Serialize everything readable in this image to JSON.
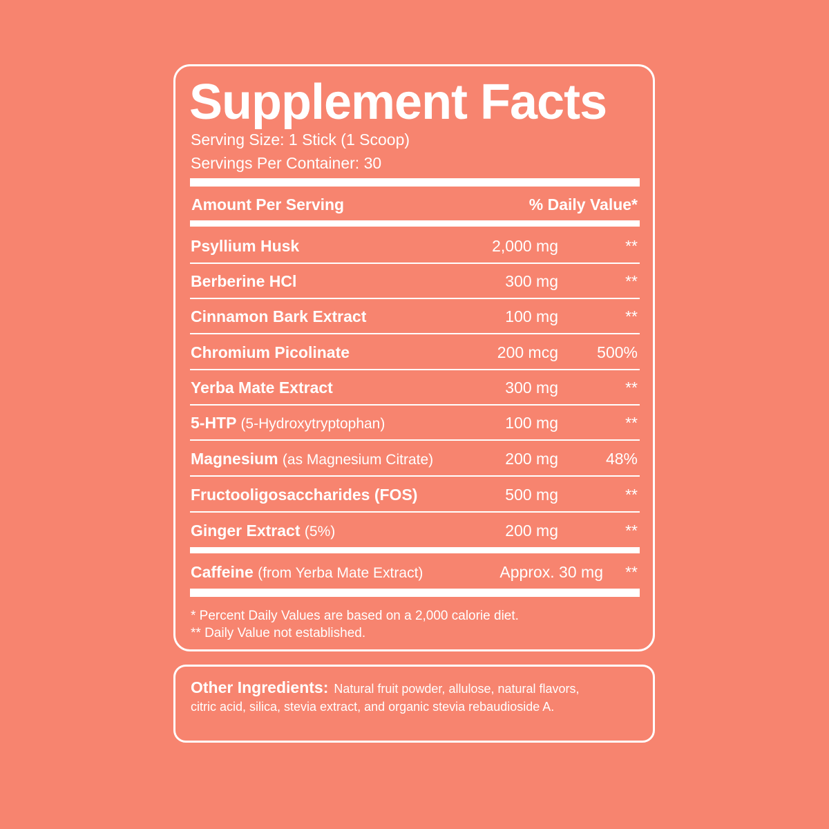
{
  "label": {
    "title": "Supplement Facts",
    "serving_size": "Serving Size: 1 Stick (1 Scoop)",
    "servings_per_container": "Servings Per Container: 30",
    "header_left": "Amount Per Serving",
    "header_right": "% Daily Value*",
    "ingredients": [
      {
        "name": "Psyllium Husk",
        "sub": "",
        "amount": "2,000 mg",
        "dv": "**"
      },
      {
        "name": "Berberine HCl",
        "sub": "",
        "amount": "300 mg",
        "dv": "**"
      },
      {
        "name": "Cinnamon Bark Extract",
        "sub": "",
        "amount": "100 mg",
        "dv": "**"
      },
      {
        "name": "Chromium Picolinate",
        "sub": "",
        "amount": "200 mcg",
        "dv": "500%"
      },
      {
        "name": "Yerba Mate Extract",
        "sub": "",
        "amount": "300 mg",
        "dv": "**"
      },
      {
        "name": "5-HTP",
        "sub": "(5-Hydroxytryptophan)",
        "amount": "100 mg",
        "dv": "**"
      },
      {
        "name": "Magnesium",
        "sub": "(as Magnesium Citrate)",
        "amount": "200 mg",
        "dv": "48%"
      },
      {
        "name": "Fructooligosaccharides (FOS)",
        "sub": "",
        "amount": "500 mg",
        "dv": "**"
      },
      {
        "name": "Ginger Extract",
        "sub": "(5%)",
        "amount": "200 mg",
        "dv": "**"
      }
    ],
    "caffeine": {
      "name": "Caffeine",
      "sub": "(from Yerba Mate Extract)",
      "amount": "Approx. 30 mg",
      "dv": "**"
    },
    "footnote_1": "* Percent Daily Values are based on a 2,000 calorie diet.",
    "footnote_2": "** Daily Value not established."
  },
  "other_ingredients": {
    "label": "Other Ingredients:",
    "text": "Natural fruit powder, allulose, natural flavors, citric acid, silica, stevia extract, and organic stevia rebaudioside A."
  },
  "colors": {
    "background": "#F7846F",
    "foreground": "#FFFFFF"
  }
}
